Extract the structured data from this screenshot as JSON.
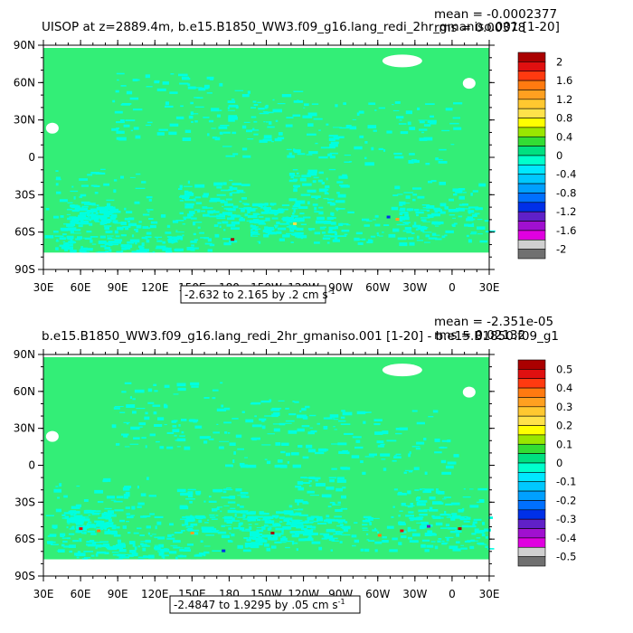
{
  "chart_data": [
    {
      "type": "heatmap",
      "title": "UISOP at z=2889.4m, b.e15.B1850_WW3.f09_g16.lang_redi_2hr_gmaniso.001 [1-20]",
      "stats": {
        "mean": "mean = -0.0002377",
        "rms": "rms = 0.00378"
      },
      "x_ticks": [
        "30E",
        "60E",
        "90E",
        "120E",
        "150E",
        "180",
        "150W",
        "120W",
        "90W",
        "60W",
        "30W",
        "0",
        "30E"
      ],
      "y_ticks": [
        "90N",
        "60N",
        "30N",
        "0",
        "30S",
        "60S",
        "90S"
      ],
      "range_label": "-2.632 to 2.165 by .2 cm s",
      "range_unit_exp": "-1",
      "colorbar": {
        "labels": [
          "2",
          "1.6",
          "1.2",
          "0.8",
          "0.4",
          "0",
          "-0.4",
          "-0.8",
          "-1.2",
          "-1.6",
          "-2"
        ],
        "colors": [
          "#aa0000",
          "#e01010",
          "#ff3a10",
          "#ff7a10",
          "#ffa020",
          "#ffc830",
          "#ffe24a",
          "#ffff00",
          "#9ae600",
          "#33dd33",
          "#00e080",
          "#00ffcc",
          "#00e8ff",
          "#00c8ff",
          "#00a0ff",
          "#0070ff",
          "#0030e8",
          "#6020c8",
          "#a010d0",
          "#e000e0",
          "#d0d0d0",
          "#707070"
        ]
      },
      "dominant_value_color": "#33ee77",
      "secondary_value_color": "#00ffe0"
    },
    {
      "type": "heatmap",
      "title": "b.e15.B1850_WW3.f09_g16.lang_redi_2hr_gmaniso.001 [1-20] - b.e15.B1850.f09_g1",
      "stats": {
        "mean": "mean = -2.351e-05",
        "rms": "rms = 0.02132"
      },
      "x_ticks": [
        "30E",
        "60E",
        "90E",
        "120E",
        "150E",
        "180",
        "150W",
        "120W",
        "90W",
        "60W",
        "30W",
        "0",
        "30E"
      ],
      "y_ticks": [
        "90N",
        "60N",
        "30N",
        "0",
        "30S",
        "60S",
        "90S"
      ],
      "range_label": "-2.4847 to 1.9295 by .05 cm s",
      "range_unit_exp": "-1",
      "colorbar": {
        "labels": [
          "0.5",
          "0.4",
          "0.3",
          "0.2",
          "0.1",
          "0",
          "-0.1",
          "-0.2",
          "-0.3",
          "-0.4",
          "-0.5"
        ],
        "colors": [
          "#aa0000",
          "#e01010",
          "#ff3a10",
          "#ff7a10",
          "#ffa020",
          "#ffc830",
          "#ffe24a",
          "#ffff00",
          "#9ae600",
          "#33dd33",
          "#00e080",
          "#00ffcc",
          "#00e8ff",
          "#00c8ff",
          "#00a0ff",
          "#0070ff",
          "#0030e8",
          "#6020c8",
          "#a010d0",
          "#e000e0",
          "#d0d0d0",
          "#707070"
        ]
      },
      "dominant_value_color": "#33ee77",
      "secondary_value_color": "#00ffe0"
    }
  ]
}
